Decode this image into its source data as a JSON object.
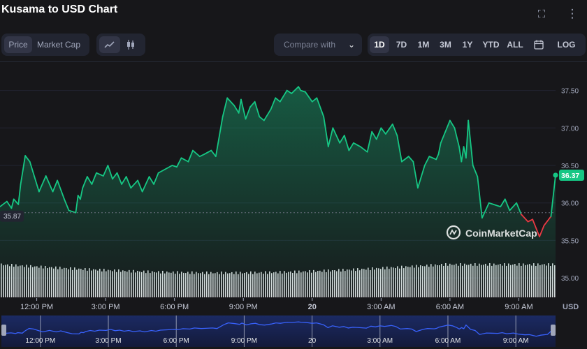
{
  "page": {
    "title": "Kusama to USD Chart"
  },
  "toolbar": {
    "tabs": [
      {
        "label": "Price"
      },
      {
        "label": "Market Cap"
      }
    ],
    "compare_placeholder": "Compare with",
    "ranges": [
      "1D",
      "7D",
      "1M",
      "3M",
      "1Y",
      "YTD",
      "ALL"
    ],
    "active_range": "1D",
    "log_label": "LOG"
  },
  "watermark": "CoinMarketCap",
  "currency_label": "USD",
  "colors": {
    "up": "#16c784",
    "down": "#ea3943",
    "background": "#17171a"
  },
  "chart_data": {
    "type": "line",
    "title": "Kusama to USD Chart",
    "ylabel": "USD",
    "ylim": [
      34.75,
      37.85
    ],
    "yticks": [
      35.0,
      35.5,
      36.0,
      36.5,
      37.0,
      37.5
    ],
    "ytick_labels": [
      "35.00",
      "35.50",
      "36.00",
      "36.50",
      "37.00",
      "37.50"
    ],
    "xtick_labels": [
      "12:00 PM",
      "3:00 PM",
      "6:00 PM",
      "9:00 PM",
      "20",
      "3:00 AM",
      "6:00 AM",
      "9:00 AM"
    ],
    "xlim_hours": [
      10.4,
      34.6
    ],
    "xtick_hours": [
      12,
      15,
      18,
      21,
      24,
      27,
      30,
      33
    ],
    "baseline": {
      "value": 35.87,
      "label": "35.87"
    },
    "last": {
      "value": 36.37,
      "label": "36.37"
    },
    "series": [
      {
        "t_hours": [
          10.4,
          10.7,
          10.9,
          11.0,
          11.2,
          11.3,
          11.5,
          11.7,
          11.9,
          12.1,
          12.4,
          12.7,
          12.9,
          13.2,
          13.4,
          13.7,
          13.8,
          13.9,
          14.0,
          14.2,
          14.4,
          14.6,
          14.9,
          15.1,
          15.3,
          15.5,
          15.7,
          15.9,
          16.1,
          16.4,
          16.6,
          16.9,
          17.1,
          17.3,
          17.6,
          17.9,
          18.1,
          18.3,
          18.6,
          18.8,
          19.1,
          19.3,
          19.6,
          19.8,
          20.1,
          20.3,
          20.6,
          20.8,
          20.9,
          21.1,
          21.3,
          21.5,
          21.7,
          21.9,
          22.2,
          22.4,
          22.6,
          22.9,
          23.1,
          23.4,
          23.5,
          23.7,
          24.0,
          24.2,
          24.5,
          24.7,
          24.9,
          25.2,
          25.4,
          25.6,
          25.8,
          26.1,
          26.4,
          26.6,
          26.8,
          27.0,
          27.2,
          27.5,
          27.7,
          27.9,
          28.2,
          28.4,
          28.6,
          28.9,
          29.1,
          29.4,
          29.5,
          29.6,
          29.8,
          30.0,
          30.2,
          30.4,
          30.5,
          30.6,
          30.7,
          30.8,
          31.0,
          31.2,
          31.4,
          31.7,
          31.9,
          32.2,
          32.4,
          32.6,
          32.9,
          33.1,
          33.4,
          33.6,
          33.9,
          34.1,
          34.4,
          34.6
        ],
        "values": [
          35.95,
          36.02,
          35.93,
          36.05,
          35.98,
          36.25,
          36.63,
          36.55,
          36.35,
          36.15,
          36.36,
          36.15,
          36.3,
          36.05,
          35.9,
          35.87,
          36.1,
          36.05,
          36.2,
          36.35,
          36.25,
          36.4,
          36.36,
          36.5,
          36.32,
          36.4,
          36.25,
          36.35,
          36.2,
          36.3,
          36.15,
          36.35,
          36.25,
          36.4,
          36.45,
          36.5,
          36.48,
          36.6,
          36.55,
          36.7,
          36.62,
          36.65,
          36.7,
          36.62,
          37.15,
          37.4,
          37.3,
          37.2,
          37.38,
          37.12,
          37.28,
          37.35,
          37.15,
          37.1,
          37.25,
          37.4,
          37.35,
          37.5,
          37.46,
          37.55,
          37.5,
          37.48,
          37.35,
          37.4,
          37.15,
          36.75,
          37.0,
          36.8,
          36.9,
          36.7,
          36.8,
          36.75,
          36.68,
          36.95,
          36.85,
          37.0,
          36.92,
          37.05,
          36.9,
          36.55,
          36.62,
          36.55,
          36.2,
          36.5,
          36.62,
          36.58,
          36.65,
          36.8,
          36.95,
          37.1,
          37.0,
          36.75,
          36.55,
          36.75,
          36.6,
          37.1,
          36.5,
          36.35,
          35.8,
          36.0,
          35.98,
          35.95,
          36.05,
          35.9,
          36.0,
          35.85,
          35.75,
          35.78,
          35.55,
          35.7,
          35.82,
          36.37
        ]
      }
    ],
    "volume_range": {
      "visible": true
    }
  }
}
